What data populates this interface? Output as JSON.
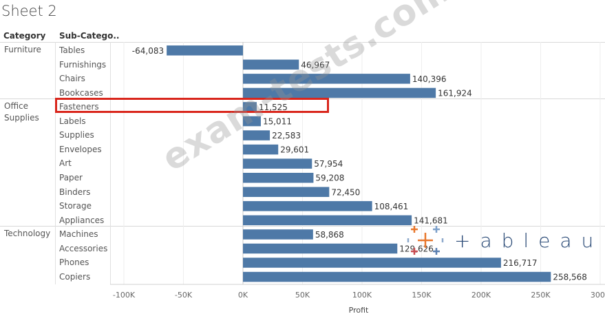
{
  "sheet_title": "Sheet 2",
  "headers": {
    "category": "Category",
    "subcategory": "Sub-Catego.."
  },
  "categories": [
    "Furniture",
    "Office\nSupplies",
    "Technology"
  ],
  "watermark": "exam-tests.com",
  "logo_text": "+ableau",
  "highlight": "Fasteners",
  "colors": {
    "bar": "#4e79a7",
    "highlight": "#d9261c"
  },
  "chart_data": {
    "type": "bar",
    "orientation": "horizontal",
    "xlabel": "Profit",
    "xlim": [
      -100000,
      300000
    ],
    "xticks": [
      -100000,
      -50000,
      0,
      50000,
      100000,
      150000,
      200000,
      250000,
      300000
    ],
    "xtick_labels": [
      "-100K",
      "-50K",
      "0K",
      "50K",
      "100K",
      "150K",
      "200K",
      "250K",
      "300K"
    ],
    "rows": [
      {
        "category": "Furniture",
        "subcategory": "Tables",
        "value": -64083,
        "label": "-64,083"
      },
      {
        "category": "Furniture",
        "subcategory": "Furnishings",
        "value": 46967,
        "label": "46,967"
      },
      {
        "category": "Furniture",
        "subcategory": "Chairs",
        "value": 140396,
        "label": "140,396"
      },
      {
        "category": "Furniture",
        "subcategory": "Bookcases",
        "value": 161924,
        "label": "161,924"
      },
      {
        "category": "Office Supplies",
        "subcategory": "Fasteners",
        "value": 11525,
        "label": "11,525"
      },
      {
        "category": "Office Supplies",
        "subcategory": "Labels",
        "value": 15011,
        "label": "15,011"
      },
      {
        "category": "Office Supplies",
        "subcategory": "Supplies",
        "value": 22583,
        "label": "22,583"
      },
      {
        "category": "Office Supplies",
        "subcategory": "Envelopes",
        "value": 29601,
        "label": "29,601"
      },
      {
        "category": "Office Supplies",
        "subcategory": "Art",
        "value": 57954,
        "label": "57,954"
      },
      {
        "category": "Office Supplies",
        "subcategory": "Paper",
        "value": 59208,
        "label": "59,208"
      },
      {
        "category": "Office Supplies",
        "subcategory": "Binders",
        "value": 72450,
        "label": "72,450"
      },
      {
        "category": "Office Supplies",
        "subcategory": "Storage",
        "value": 108461,
        "label": "108,461"
      },
      {
        "category": "Office Supplies",
        "subcategory": "Appliances",
        "value": 141681,
        "label": "141,681"
      },
      {
        "category": "Technology",
        "subcategory": "Machines",
        "value": 58868,
        "label": "58,868"
      },
      {
        "category": "Technology",
        "subcategory": "Accessories",
        "value": 129626,
        "label": "129,626"
      },
      {
        "category": "Technology",
        "subcategory": "Phones",
        "value": 216717,
        "label": "216,717"
      },
      {
        "category": "Technology",
        "subcategory": "Copiers",
        "value": 258568,
        "label": "258,568"
      }
    ]
  }
}
